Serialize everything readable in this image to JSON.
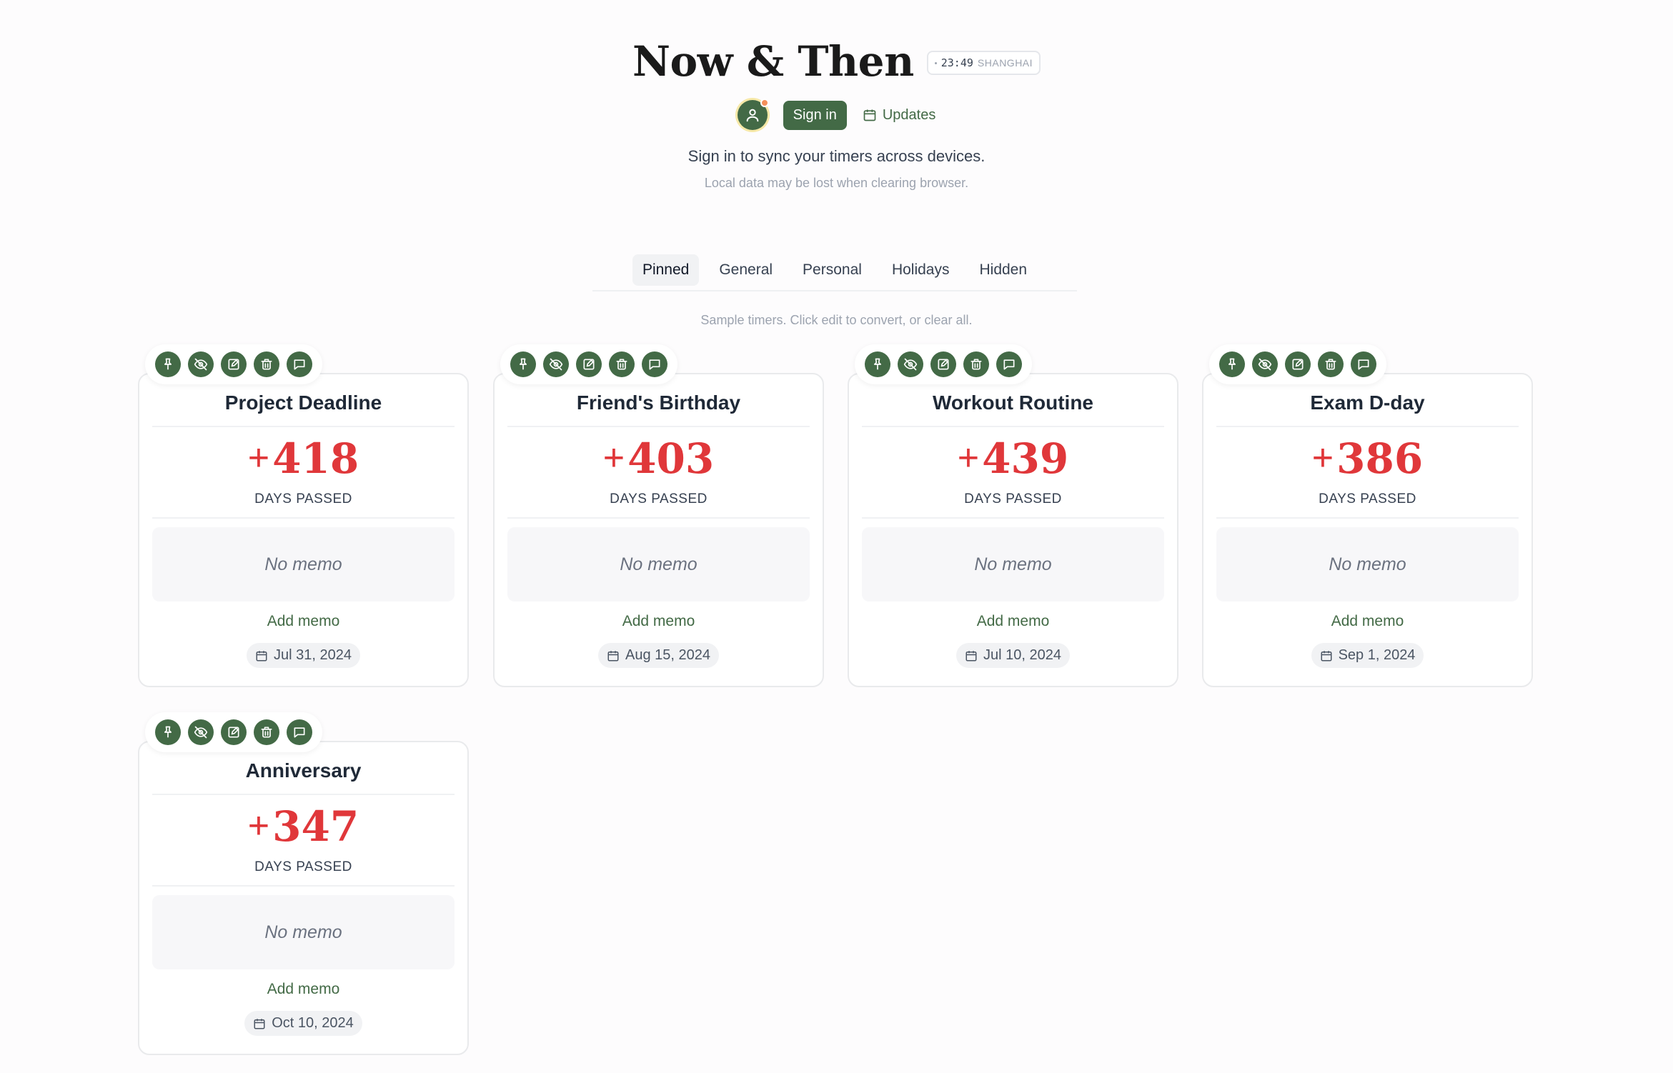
{
  "header": {
    "title": "Now & Then",
    "clock_time": "23:49",
    "clock_city": "SHANGHAI",
    "signin_label": "Sign in",
    "updates_label": "Updates",
    "sync_text": "Sign in to sync your timers across devices.",
    "local_text": "Local data may be lost when clearing browser."
  },
  "tabs": [
    "Pinned",
    "General",
    "Personal",
    "Holidays",
    "Hidden"
  ],
  "active_tab": "Pinned",
  "sample_text": "Sample timers. Click edit to convert, or clear all.",
  "toolbar_icons": [
    "pin-icon",
    "eye-off-icon",
    "edit-icon",
    "trash-icon",
    "comment-icon"
  ],
  "cards": [
    {
      "title": "Project Deadline",
      "sign": "+",
      "count": "418",
      "label": "DAYS PASSED",
      "memo": "No memo",
      "add_memo": "Add memo",
      "date": "Jul 31, 2024"
    },
    {
      "title": "Friend's Birthday",
      "sign": "+",
      "count": "403",
      "label": "DAYS PASSED",
      "memo": "No memo",
      "add_memo": "Add memo",
      "date": "Aug 15, 2024"
    },
    {
      "title": "Workout Routine",
      "sign": "+",
      "count": "439",
      "label": "DAYS PASSED",
      "memo": "No memo",
      "add_memo": "Add memo",
      "date": "Jul 10, 2024"
    },
    {
      "title": "Exam D-day",
      "sign": "+",
      "count": "386",
      "label": "DAYS PASSED",
      "memo": "No memo",
      "add_memo": "Add memo",
      "date": "Sep 1, 2024"
    },
    {
      "title": "Anniversary",
      "sign": "+",
      "count": "347",
      "label": "DAYS PASSED",
      "memo": "No memo",
      "add_memo": "Add memo",
      "date": "Oct 10, 2024"
    }
  ],
  "colors": {
    "accent": "#436a46",
    "count": "#e0373a",
    "notification": "#f4905a"
  }
}
